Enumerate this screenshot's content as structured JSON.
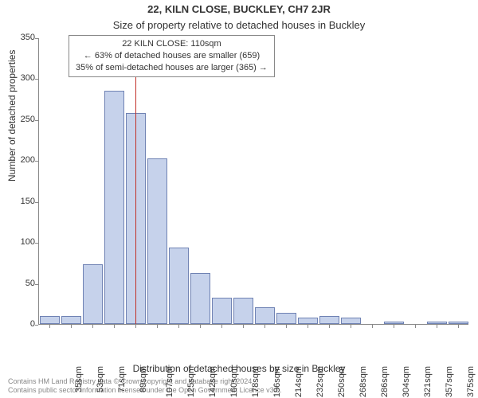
{
  "header": {
    "address": "22, KILN CLOSE, BUCKLEY, CH7 2JR",
    "subtitle": "Size of property relative to detached houses in Buckley"
  },
  "info_box": {
    "line1": "22 KILN CLOSE: 110sqm",
    "line2": "← 63% of detached houses are smaller (659)",
    "line3": "35% of semi-detached houses are larger (365) →"
  },
  "chart": {
    "type": "histogram",
    "y_label": "Number of detached properties",
    "x_label": "Distribution of detached houses by size in Buckley",
    "ylim": [
      0,
      350
    ],
    "ytick_step": 50,
    "y_ticks": [
      0,
      50,
      100,
      150,
      200,
      250,
      300,
      350
    ],
    "background_color": "#ffffff",
    "grid_color": "#888888",
    "bar_fill": "#c6d2eb",
    "bar_border": "#6f82b3",
    "reference_line_color": "#c23028",
    "reference_value_sqm": 110,
    "x_tick_labels": [
      "35sqm",
      "53sqm",
      "71sqm",
      "89sqm",
      "107sqm",
      "125sqm",
      "142sqm",
      "160sqm",
      "178sqm",
      "196sqm",
      "214sqm",
      "232sqm",
      "250sqm",
      "268sqm",
      "286sqm",
      "304sqm",
      "321sqm",
      "357sqm",
      "375sqm",
      "393sqm"
    ],
    "bars": [
      {
        "label": "35sqm",
        "value": 10
      },
      {
        "label": "53sqm",
        "value": 10
      },
      {
        "label": "71sqm",
        "value": 73
      },
      {
        "label": "89sqm",
        "value": 285
      },
      {
        "label": "107sqm",
        "value": 258
      },
      {
        "label": "125sqm",
        "value": 202
      },
      {
        "label": "142sqm",
        "value": 93
      },
      {
        "label": "160sqm",
        "value": 62
      },
      {
        "label": "178sqm",
        "value": 32
      },
      {
        "label": "196sqm",
        "value": 32
      },
      {
        "label": "214sqm",
        "value": 20
      },
      {
        "label": "232sqm",
        "value": 14
      },
      {
        "label": "250sqm",
        "value": 8
      },
      {
        "label": "268sqm",
        "value": 10
      },
      {
        "label": "286sqm",
        "value": 8
      },
      {
        "label": "304sqm",
        "value": 0
      },
      {
        "label": "321sqm",
        "value": 3
      },
      {
        "label": "357sqm",
        "value": 0
      },
      {
        "label": "375sqm",
        "value": 3
      },
      {
        "label": "393sqm",
        "value": 3
      }
    ],
    "label_fontsize": 12,
    "tick_fontsize": 11
  },
  "footer": {
    "line1": "Contains HM Land Registry data © Crown copyright and database right 2024.",
    "line2": "Contains public sector information licensed under the Open Government Licence v3.0."
  }
}
